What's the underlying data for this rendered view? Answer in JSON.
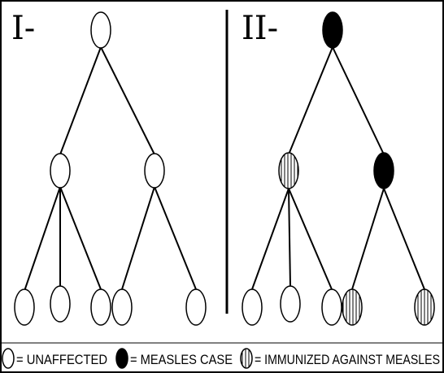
{
  "panels": {
    "left": {
      "label": "I-"
    },
    "right": {
      "label": "II-"
    }
  },
  "legend": {
    "unaffected": "= UNAFFECTED",
    "measles": "= MEASLES CASE",
    "immunized": "= IMMUNIZED AGAINST MEASLES"
  },
  "colors": {
    "ink": "#000000",
    "background": "#ffffff"
  }
}
